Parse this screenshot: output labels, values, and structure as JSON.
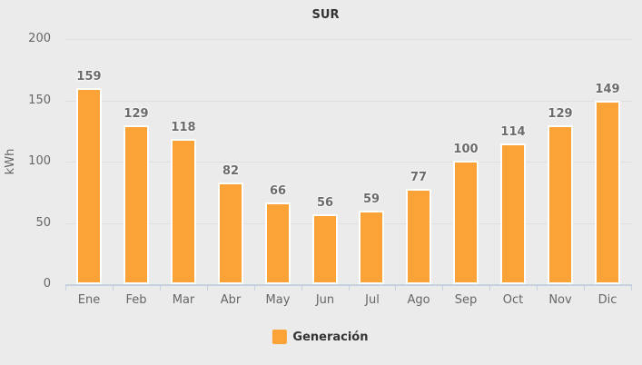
{
  "chart_data": {
    "type": "bar",
    "title": "SUR",
    "categories": [
      "Ene",
      "Feb",
      "Mar",
      "Abr",
      "May",
      "Jun",
      "Jul",
      "Ago",
      "Sep",
      "Oct",
      "Nov",
      "Dic"
    ],
    "series": [
      {
        "name": "Generación",
        "values": [
          159,
          129,
          118,
          82,
          66,
          56,
          59,
          77,
          100,
          114,
          129,
          149
        ],
        "color": "#FCA338"
      }
    ],
    "xlabel": "",
    "ylabel": "kWh",
    "ylim": [
      0,
      200
    ],
    "yticks": [
      0,
      50,
      100,
      150,
      200
    ],
    "grid": true,
    "legend_position": "bottom"
  },
  "colors": {
    "background": "#EBEBEB",
    "bar_fill": "#FCA338",
    "bar_border": "#FFFFFF",
    "gridline": "#DEDEDE",
    "axis": "#C4D1DF",
    "tick_label_text": "#666666",
    "data_label_text": "#6B6B6B",
    "title_text": "#333333"
  }
}
